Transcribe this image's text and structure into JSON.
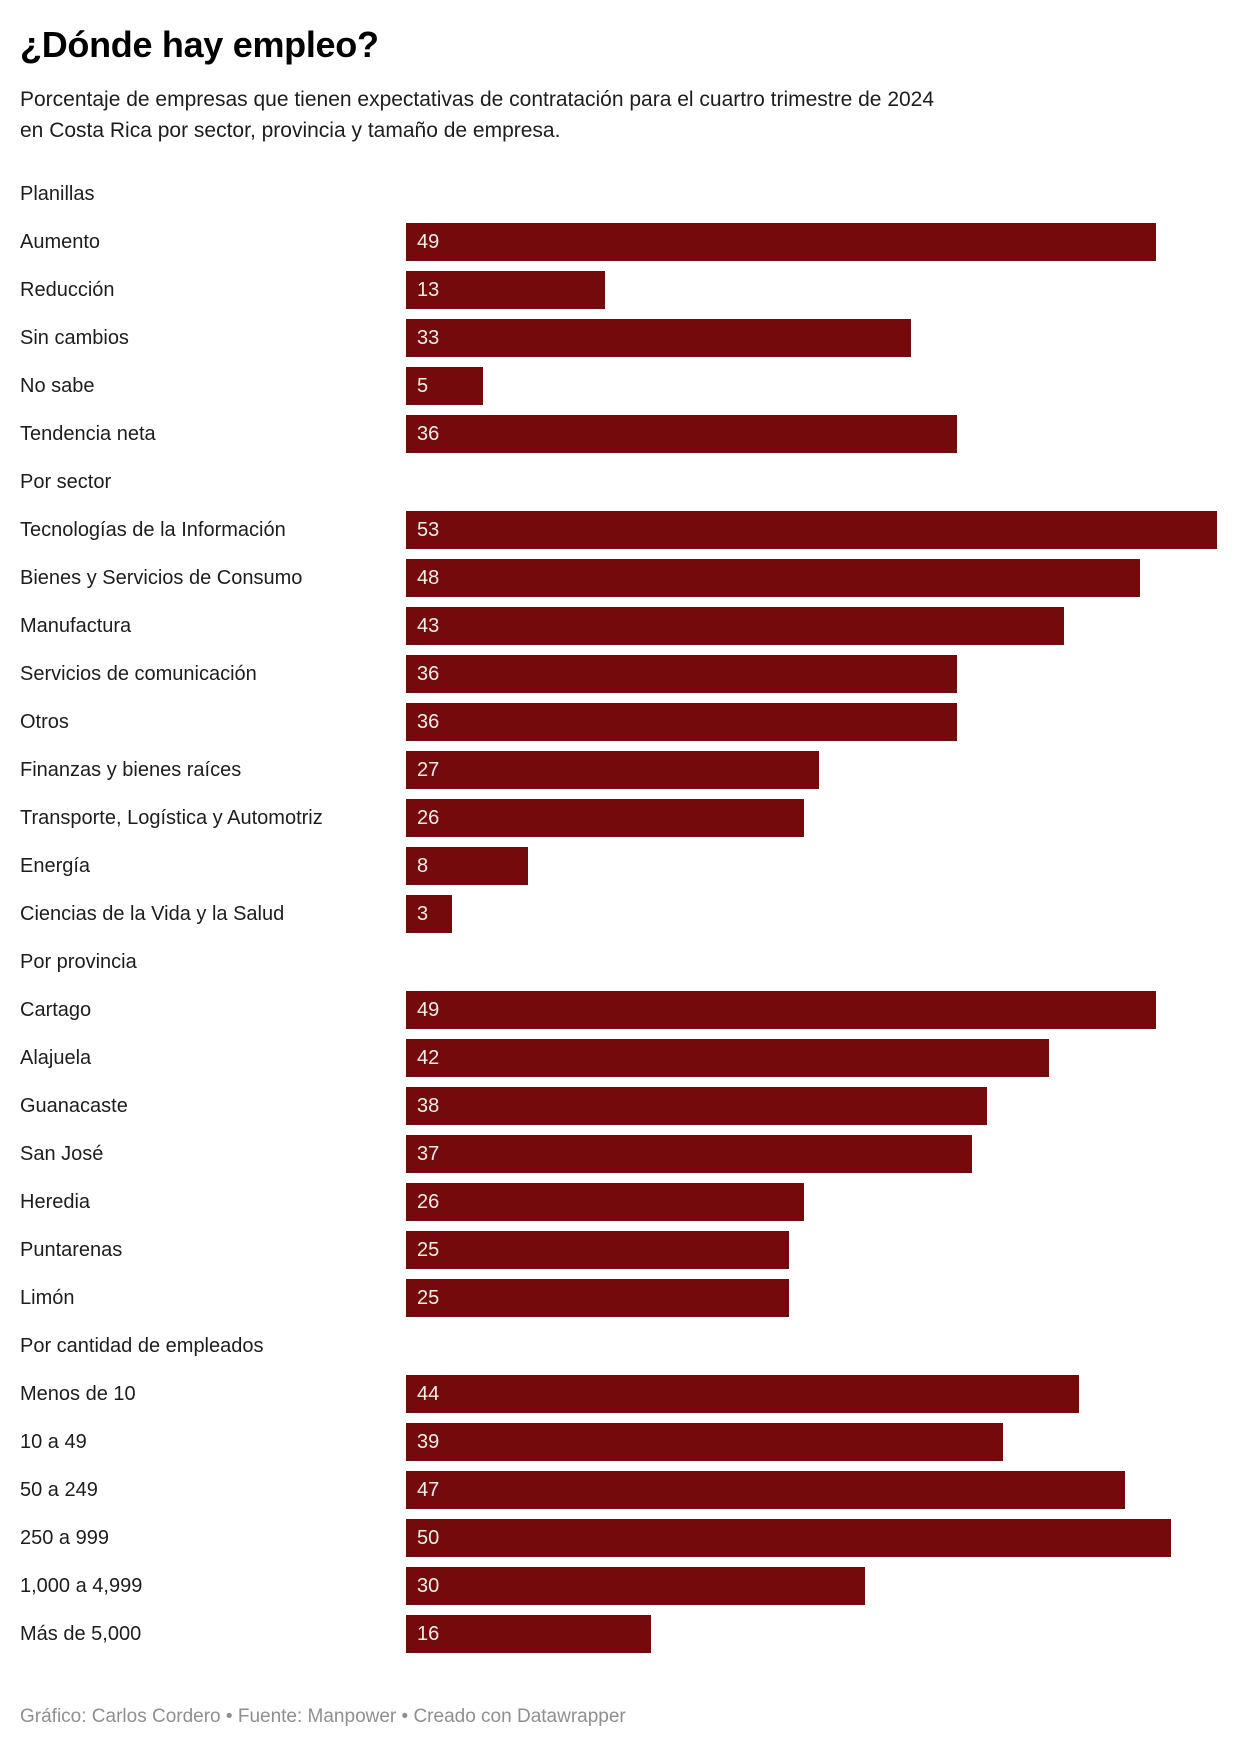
{
  "chart_data": {
    "type": "bar",
    "orientation": "horizontal",
    "title": "¿Dónde hay empleo?",
    "subtitle": "Porcentaje de empresas que tienen expectativas de contratación para el cuartro trimestre de 2024 en Costa Rica por sector, provincia y tamaño de empresa.",
    "value_axis_max": 53,
    "grid": "off",
    "legend": "none",
    "bar_color": "#750a0c",
    "value_label_color": "#f6f0e7",
    "label_color": "#1d1d1d",
    "groups": [
      {
        "header": "Planillas",
        "items": [
          {
            "label": "Aumento",
            "value": 49
          },
          {
            "label": "Reducción",
            "value": 13
          },
          {
            "label": "Sin cambios",
            "value": 33
          },
          {
            "label": "No sabe",
            "value": 5
          },
          {
            "label": "Tendencia neta",
            "value": 36
          }
        ]
      },
      {
        "header": "Por sector",
        "items": [
          {
            "label": "Tecnologías de la Información",
            "value": 53
          },
          {
            "label": "Bienes y Servicios de Consumo",
            "value": 48
          },
          {
            "label": "Manufactura",
            "value": 43
          },
          {
            "label": "Servicios de comunicación",
            "value": 36
          },
          {
            "label": "Otros",
            "value": 36
          },
          {
            "label": "Finanzas y bienes raíces",
            "value": 27
          },
          {
            "label": "Transporte, Logística y Automotriz",
            "value": 26
          },
          {
            "label": "Energía",
            "value": 8
          },
          {
            "label": "Ciencias de la Vida y la Salud",
            "value": 3
          }
        ]
      },
      {
        "header": "Por provincia",
        "items": [
          {
            "label": "Cartago",
            "value": 49
          },
          {
            "label": "Alajuela",
            "value": 42
          },
          {
            "label": "Guanacaste",
            "value": 38
          },
          {
            "label": "San José",
            "value": 37
          },
          {
            "label": "Heredia",
            "value": 26
          },
          {
            "label": "Puntarenas",
            "value": 25
          },
          {
            "label": "Limón",
            "value": 25
          }
        ]
      },
      {
        "header": "Por cantidad de empleados",
        "items": [
          {
            "label": "Menos de 10",
            "value": 44
          },
          {
            "label": "10 a 49",
            "value": 39
          },
          {
            "label": "50 a 249",
            "value": 47
          },
          {
            "label": "250 a 999",
            "value": 50
          },
          {
            "label": "1,000 a 4,999",
            "value": 30
          },
          {
            "label": "Más de 5,000",
            "value": 16
          }
        ]
      }
    ]
  },
  "footer": {
    "credit": "Gráfico: Carlos Cordero • Fuente: Manpower • Creado con Datawrapper"
  }
}
